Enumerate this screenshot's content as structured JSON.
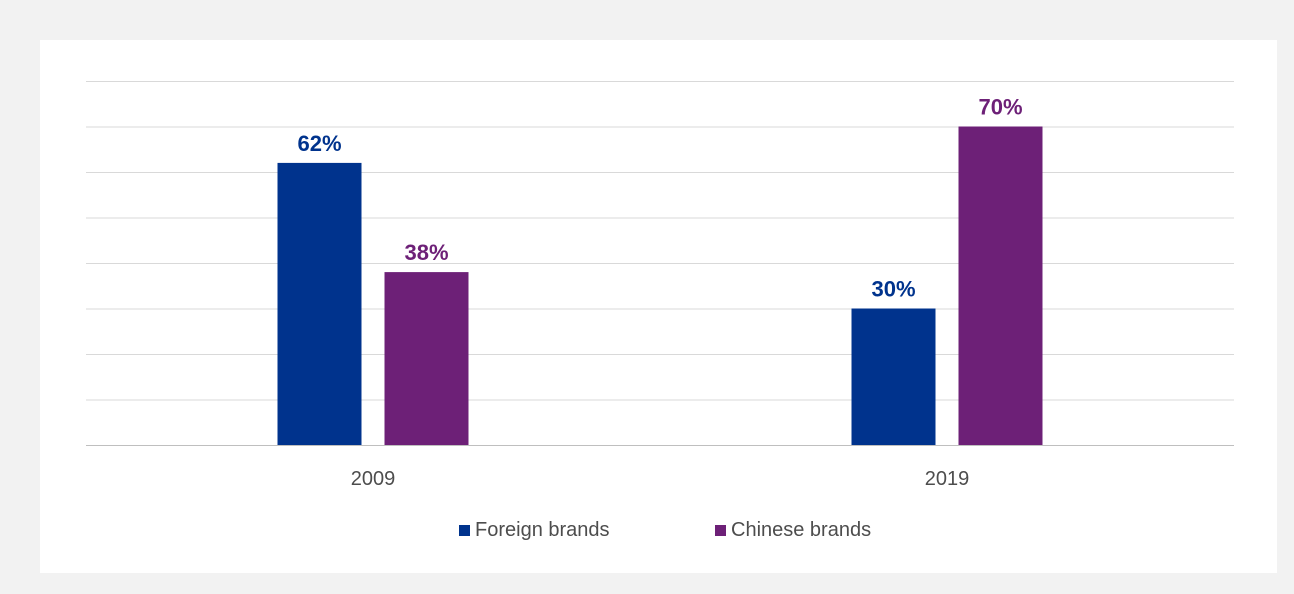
{
  "chart_data": {
    "type": "bar",
    "categories": [
      "2009",
      "2019"
    ],
    "series": [
      {
        "name": "Foreign brands",
        "values": [
          62,
          30
        ],
        "labels": [
          "62%",
          "30%"
        ],
        "color": "#00338d"
      },
      {
        "name": "Chinese brands",
        "values": [
          38,
          70
        ],
        "labels": [
          "38%",
          "70%"
        ],
        "color": "#6d2077"
      }
    ],
    "ylim": [
      0,
      80
    ],
    "y_grid_step": 10,
    "grid": true,
    "legend_position": "bottom",
    "colors": {
      "background": "#f2f2f2",
      "panel": "#ffffff",
      "gridline": "#d9d9d9",
      "axis": "#bfbfbf",
      "tick_text": "#4d4d4d"
    }
  }
}
